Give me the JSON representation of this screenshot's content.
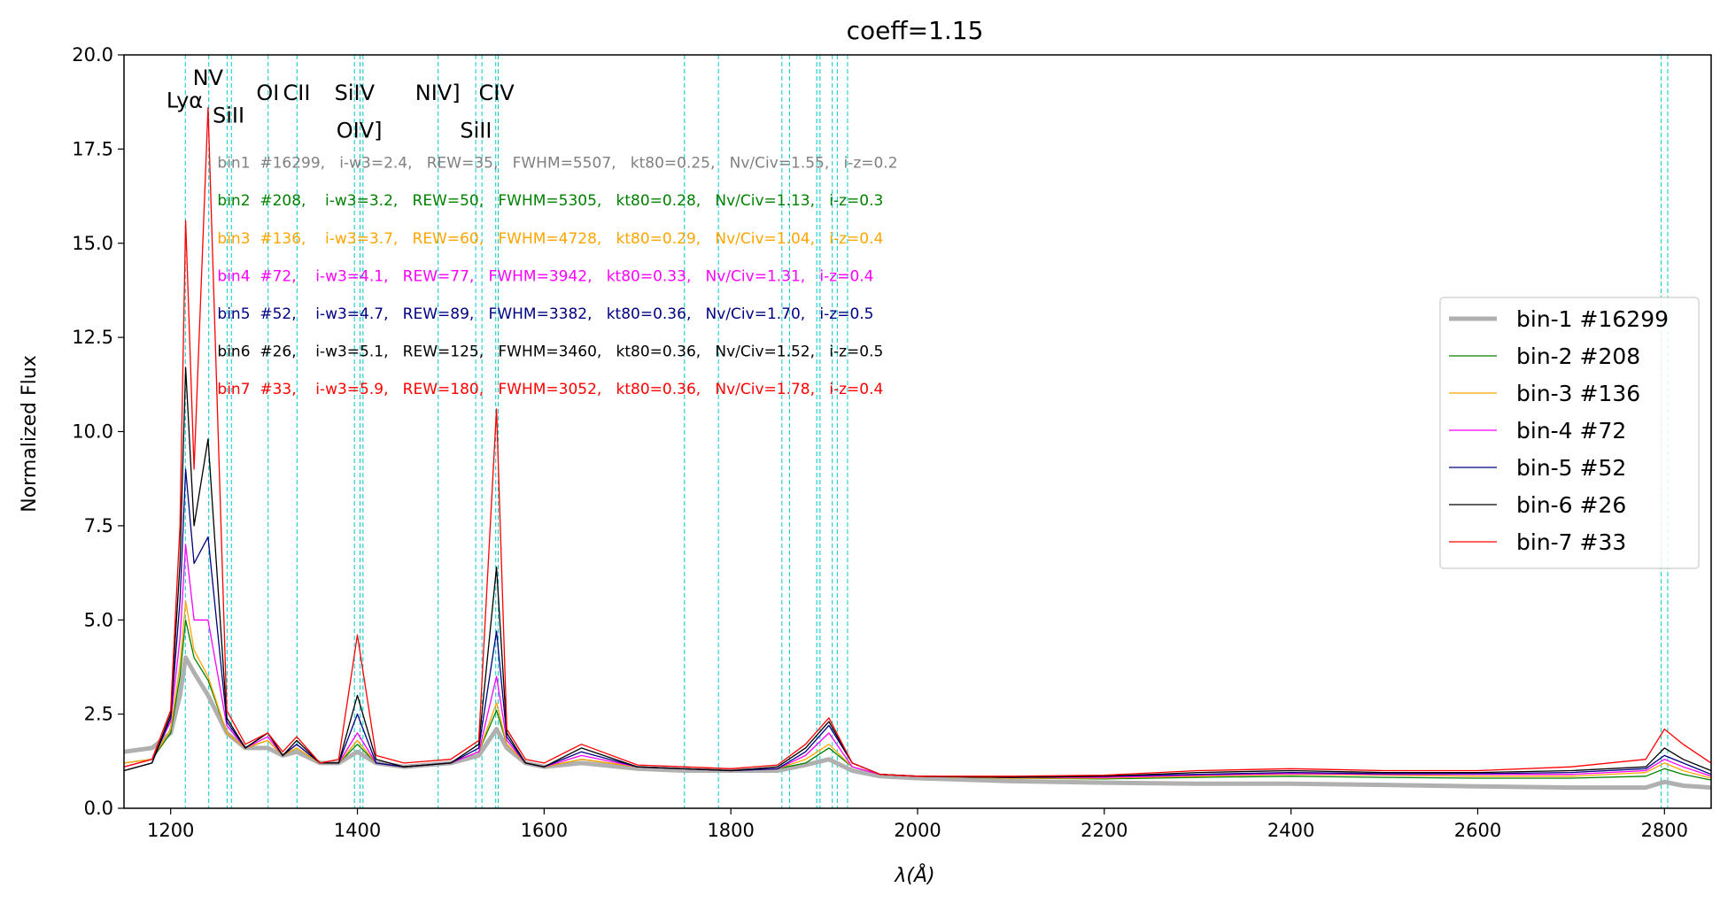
{
  "chart_data": {
    "type": "line",
    "title": "coeff=1.15",
    "xlabel": "λ(Å)",
    "ylabel": "Normalized Flux",
    "xlim": [
      1150,
      2850
    ],
    "ylim": [
      0,
      20
    ],
    "grid": false,
    "legend_position": "right",
    "x_ticks": [
      1200,
      1400,
      1600,
      1800,
      2000,
      2200,
      2400,
      2600,
      2800
    ],
    "y_ticks": [
      0.0,
      2.5,
      5.0,
      7.5,
      10.0,
      12.5,
      15.0,
      17.5,
      20.0
    ],
    "x_tick_labels": [
      "1200",
      "1400",
      "1600",
      "1800",
      "2000",
      "2200",
      "2400",
      "2600",
      "2800"
    ],
    "y_tick_labels": [
      "0.0",
      "2.5",
      "5.0",
      "7.5",
      "10.0",
      "12.5",
      "15.0",
      "17.5",
      "20.0"
    ],
    "reference_lines": [
      1215.7,
      1240.8,
      1260.4,
      1265.0,
      1304.4,
      1335.3,
      1396.8,
      1402.8,
      1406.0,
      1486.5,
      1526.7,
      1533.4,
      1548.2,
      1550.8,
      1750.3,
      1786.7,
      1854.7,
      1862.8,
      1892.0,
      1895.5,
      1908.7,
      1914.0,
      1925.0,
      2796.4,
      2803.5
    ],
    "line_labels": [
      {
        "text": "Lyα",
        "x": 1215,
        "y": 18.6
      },
      {
        "text": "NV",
        "x": 1240,
        "y": 19.2
      },
      {
        "text": "SiII",
        "x": 1262,
        "y": 18.2
      },
      {
        "text": "OI",
        "x": 1304,
        "y": 18.8
      },
      {
        "text": "CII",
        "x": 1335,
        "y": 18.8
      },
      {
        "text": "SiIV",
        "x": 1397,
        "y": 18.8
      },
      {
        "text": "OIV]",
        "x": 1402,
        "y": 17.8
      },
      {
        "text": "NIV]",
        "x": 1486,
        "y": 18.8
      },
      {
        "text": "CIV",
        "x": 1549,
        "y": 18.8
      },
      {
        "text": "SiII",
        "x": 1527,
        "y": 17.8
      }
    ],
    "annotations": [
      {
        "text": "bin1  #16299,   i-w3=2.4,   REW=35,   FWHM=5507,   kt80=0.25,   Nv/Civ=1.55,   i-z=0.2",
        "color": "#808080",
        "x": 1250,
        "y": 17.0
      },
      {
        "text": "bin2  #208,    i-w3=3.2,   REW=50,   FWHM=5305,   kt80=0.28,   Nv/Civ=1.13,   i-z=0.3",
        "color": "#008000",
        "x": 1250,
        "y": 16.0
      },
      {
        "text": "bin3  #136,    i-w3=3.7,   REW=60,   FWHM=4728,   kt80=0.29,   Nv/Civ=1.04,   i-z=0.4",
        "color": "#ffa500",
        "x": 1250,
        "y": 15.0
      },
      {
        "text": "bin4  #72,    i-w3=4.1,   REW=77,   FWHM=3942,   kt80=0.33,   Nv/Civ=1.31,   i-z=0.4",
        "color": "#ff00ff",
        "x": 1250,
        "y": 14.0
      },
      {
        "text": "bin5  #52,    i-w3=4.7,   REW=89,   FWHM=3382,   kt80=0.36,   Nv/Civ=1.70,   i-z=0.5",
        "color": "#000080",
        "x": 1250,
        "y": 13.0
      },
      {
        "text": "bin6  #26,    i-w3=5.1,   REW=125,   FWHM=3460,   kt80=0.36,   Nv/Civ=1.52,   i-z=0.5",
        "color": "#000000",
        "x": 1250,
        "y": 12.0
      },
      {
        "text": "bin7  #33,    i-w3=5.9,   REW=180,   FWHM=3052,   kt80=0.36,   Nv/Civ=1.78,   i-z=0.4",
        "color": "#ff0000",
        "x": 1250,
        "y": 11.0
      }
    ],
    "series": [
      {
        "name": "bin-1 #16299",
        "color": "#b0b0b0",
        "wide": true,
        "x": [
          1150,
          1180,
          1200,
          1210,
          1216,
          1225,
          1240,
          1260,
          1280,
          1304,
          1320,
          1335,
          1360,
          1380,
          1400,
          1420,
          1450,
          1500,
          1530,
          1549,
          1560,
          1580,
          1600,
          1640,
          1700,
          1750,
          1800,
          1850,
          1880,
          1905,
          1930,
          1960,
          2000,
          2100,
          2200,
          2300,
          2400,
          2500,
          2600,
          2700,
          2780,
          2800,
          2820,
          2850
        ],
        "y": [
          1.5,
          1.6,
          2.0,
          3.0,
          4.0,
          3.6,
          3.0,
          2.0,
          1.6,
          1.6,
          1.4,
          1.5,
          1.2,
          1.2,
          1.5,
          1.2,
          1.1,
          1.2,
          1.4,
          2.1,
          1.6,
          1.2,
          1.1,
          1.2,
          1.05,
          1.0,
          1.0,
          1.0,
          1.15,
          1.3,
          1.0,
          0.85,
          0.8,
          0.72,
          0.68,
          0.65,
          0.65,
          0.62,
          0.58,
          0.55,
          0.55,
          0.7,
          0.6,
          0.55
        ]
      },
      {
        "name": "bin-2 #208",
        "color": "#008000",
        "wide": false,
        "x": [
          1150,
          1180,
          1200,
          1210,
          1216,
          1225,
          1240,
          1260,
          1280,
          1304,
          1320,
          1335,
          1360,
          1380,
          1400,
          1420,
          1450,
          1500,
          1530,
          1549,
          1560,
          1580,
          1600,
          1640,
          1700,
          1750,
          1800,
          1850,
          1880,
          1905,
          1930,
          1960,
          2000,
          2100,
          2200,
          2300,
          2400,
          2500,
          2600,
          2700,
          2780,
          2800,
          2820,
          2850
        ],
        "y": [
          1.2,
          1.3,
          2.0,
          3.5,
          5.0,
          4.0,
          3.4,
          2.0,
          1.6,
          1.8,
          1.4,
          1.6,
          1.2,
          1.2,
          1.7,
          1.2,
          1.1,
          1.2,
          1.5,
          2.6,
          1.7,
          1.2,
          1.1,
          1.3,
          1.1,
          1.05,
          1.0,
          1.05,
          1.2,
          1.6,
          1.1,
          0.9,
          0.85,
          0.8,
          0.78,
          0.82,
          0.85,
          0.82,
          0.8,
          0.8,
          0.85,
          1.05,
          0.9,
          0.75
        ]
      },
      {
        "name": "bin-3 #136",
        "color": "#ffa500",
        "wide": false,
        "x": [
          1150,
          1180,
          1200,
          1210,
          1216,
          1225,
          1240,
          1260,
          1280,
          1304,
          1320,
          1335,
          1360,
          1380,
          1400,
          1420,
          1450,
          1500,
          1530,
          1549,
          1560,
          1580,
          1600,
          1640,
          1700,
          1750,
          1800,
          1850,
          1880,
          1905,
          1930,
          1960,
          2000,
          2100,
          2200,
          2300,
          2400,
          2500,
          2600,
          2700,
          2780,
          2800,
          2820,
          2850
        ],
        "y": [
          1.2,
          1.3,
          2.1,
          3.8,
          5.5,
          4.2,
          3.5,
          2.0,
          1.6,
          1.8,
          1.4,
          1.6,
          1.2,
          1.2,
          1.8,
          1.2,
          1.1,
          1.2,
          1.5,
          2.8,
          1.7,
          1.2,
          1.1,
          1.3,
          1.1,
          1.05,
          1.0,
          1.05,
          1.3,
          1.7,
          1.1,
          0.9,
          0.85,
          0.8,
          0.8,
          0.85,
          0.9,
          0.88,
          0.85,
          0.85,
          0.95,
          1.2,
          1.0,
          0.8
        ]
      },
      {
        "name": "bin-4 #72",
        "color": "#ff00ff",
        "wide": false,
        "x": [
          1150,
          1180,
          1200,
          1210,
          1216,
          1225,
          1240,
          1260,
          1280,
          1304,
          1320,
          1335,
          1360,
          1380,
          1400,
          1420,
          1450,
          1500,
          1530,
          1549,
          1560,
          1580,
          1600,
          1640,
          1700,
          1750,
          1800,
          1850,
          1880,
          1905,
          1930,
          1960,
          2000,
          2100,
          2200,
          2300,
          2400,
          2500,
          2600,
          2700,
          2780,
          2800,
          2820,
          2850
        ],
        "y": [
          1.1,
          1.3,
          2.3,
          4.5,
          7.0,
          5.0,
          5.0,
          2.2,
          1.6,
          1.9,
          1.4,
          1.7,
          1.2,
          1.2,
          2.0,
          1.2,
          1.1,
          1.2,
          1.5,
          3.5,
          1.8,
          1.2,
          1.1,
          1.4,
          1.1,
          1.05,
          1.0,
          1.05,
          1.4,
          2.0,
          1.1,
          0.9,
          0.85,
          0.82,
          0.82,
          0.88,
          0.92,
          0.9,
          0.9,
          0.9,
          1.0,
          1.3,
          1.1,
          0.85
        ]
      },
      {
        "name": "bin-5 #52",
        "color": "#000080",
        "wide": false,
        "x": [
          1150,
          1180,
          1200,
          1210,
          1216,
          1225,
          1240,
          1260,
          1280,
          1304,
          1320,
          1335,
          1360,
          1380,
          1400,
          1420,
          1450,
          1500,
          1530,
          1549,
          1560,
          1580,
          1600,
          1640,
          1700,
          1750,
          1800,
          1850,
          1880,
          1905,
          1930,
          1960,
          2000,
          2100,
          2200,
          2300,
          2400,
          2500,
          2600,
          2700,
          2780,
          2800,
          2820,
          2850
        ],
        "y": [
          1.0,
          1.2,
          2.4,
          5.5,
          9.0,
          6.5,
          7.2,
          2.3,
          1.6,
          2.0,
          1.4,
          1.7,
          1.2,
          1.2,
          2.5,
          1.2,
          1.1,
          1.2,
          1.6,
          4.7,
          1.9,
          1.2,
          1.1,
          1.5,
          1.1,
          1.05,
          1.0,
          1.05,
          1.5,
          2.2,
          1.2,
          0.9,
          0.85,
          0.82,
          0.85,
          0.9,
          0.95,
          0.92,
          0.92,
          0.95,
          1.05,
          1.4,
          1.2,
          0.9
        ]
      },
      {
        "name": "bin-6 #26",
        "color": "#000000",
        "wide": false,
        "x": [
          1150,
          1180,
          1200,
          1210,
          1216,
          1225,
          1240,
          1260,
          1280,
          1304,
          1320,
          1335,
          1360,
          1380,
          1400,
          1420,
          1450,
          1500,
          1530,
          1549,
          1560,
          1580,
          1600,
          1640,
          1700,
          1750,
          1800,
          1850,
          1880,
          1905,
          1930,
          1960,
          2000,
          2100,
          2200,
          2300,
          2400,
          2500,
          2600,
          2700,
          2780,
          2800,
          2820,
          2850
        ],
        "y": [
          1.0,
          1.2,
          2.5,
          6.5,
          11.7,
          7.5,
          9.8,
          2.4,
          1.6,
          2.0,
          1.4,
          1.8,
          1.2,
          1.2,
          3.0,
          1.3,
          1.1,
          1.2,
          1.7,
          6.4,
          2.0,
          1.2,
          1.1,
          1.6,
          1.1,
          1.05,
          1.0,
          1.1,
          1.6,
          2.3,
          1.2,
          0.9,
          0.85,
          0.82,
          0.85,
          0.95,
          1.0,
          0.95,
          0.95,
          1.0,
          1.1,
          1.6,
          1.3,
          1.0
        ]
      },
      {
        "name": "bin-7 #33",
        "color": "#ff0000",
        "wide": false,
        "x": [
          1150,
          1180,
          1200,
          1210,
          1216,
          1225,
          1240,
          1260,
          1280,
          1304,
          1320,
          1335,
          1360,
          1380,
          1400,
          1420,
          1450,
          1500,
          1530,
          1549,
          1560,
          1580,
          1600,
          1640,
          1700,
          1750,
          1800,
          1850,
          1880,
          1905,
          1930,
          1960,
          2000,
          2100,
          2200,
          2300,
          2400,
          2500,
          2600,
          2700,
          2780,
          2800,
          2820,
          2850
        ],
        "y": [
          1.1,
          1.3,
          2.6,
          7.5,
          15.6,
          9.0,
          18.6,
          2.6,
          1.7,
          2.0,
          1.5,
          1.9,
          1.2,
          1.3,
          4.6,
          1.4,
          1.2,
          1.3,
          1.8,
          10.6,
          2.1,
          1.3,
          1.2,
          1.7,
          1.15,
          1.1,
          1.05,
          1.15,
          1.7,
          2.4,
          1.2,
          0.9,
          0.85,
          0.85,
          0.88,
          1.0,
          1.05,
          1.0,
          1.0,
          1.1,
          1.3,
          2.1,
          1.7,
          1.2
        ]
      }
    ]
  }
}
